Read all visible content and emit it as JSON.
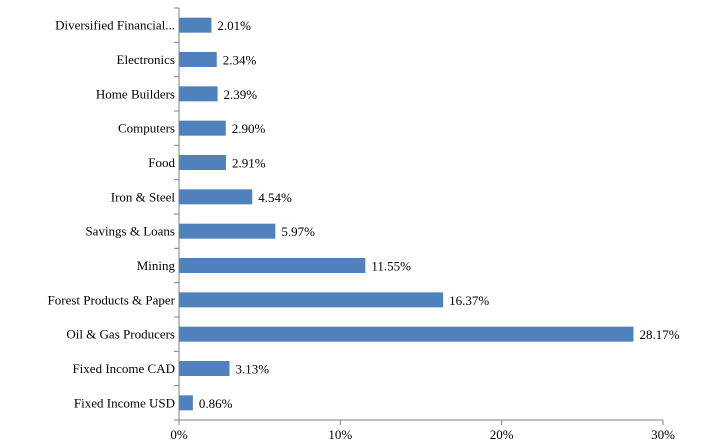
{
  "chart_data": {
    "type": "bar",
    "orientation": "horizontal",
    "title": "",
    "xlabel": "",
    "ylabel": "",
    "categories": [
      "Diversified Financial...",
      "Electronics",
      "Home Builders",
      "Computers",
      "Food",
      "Iron & Steel",
      "Savings & Loans",
      "Mining",
      "Forest Products & Paper",
      "Oil & Gas Producers",
      "Fixed Income CAD",
      "Fixed Income USD"
    ],
    "values": [
      2.01,
      2.34,
      2.39,
      2.9,
      2.91,
      4.54,
      5.97,
      11.55,
      16.37,
      28.17,
      3.13,
      0.86
    ],
    "value_labels": [
      "2.01%",
      "2.34%",
      "2.39%",
      "2.90%",
      "2.91%",
      "4.54%",
      "5.97%",
      "11.55%",
      "16.37%",
      "28.17%",
      "3.13%",
      "0.86%"
    ],
    "xlim": [
      0,
      30
    ],
    "x_ticks": [
      0,
      10,
      20,
      30
    ],
    "x_tick_labels": [
      "0%",
      "10%",
      "20%",
      "30%"
    ],
    "grid": false,
    "legend": "none",
    "bar_color": "#4f81bd"
  }
}
